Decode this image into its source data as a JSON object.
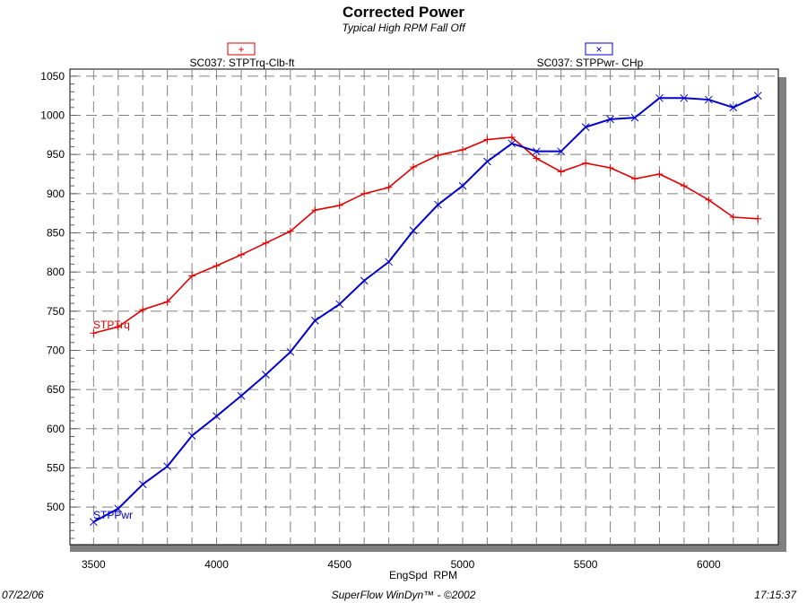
{
  "chart_data": {
    "type": "line",
    "title": "Corrected Power",
    "subtitle": "Typical High RPM Fall Off",
    "xlabel": "EngSpd  RPM",
    "ylabel": "",
    "xlim": [
      3404,
      6283
    ],
    "ylim": [
      452,
      1059
    ],
    "x_ticks": [
      3500,
      4000,
      4500,
      5000,
      5500,
      6000
    ],
    "y_ticks": [
      500,
      550,
      600,
      650,
      700,
      750,
      800,
      850,
      900,
      950,
      1000,
      1050
    ],
    "grid": true,
    "legend_placement": "top",
    "x": [
      3500,
      3600,
      3700,
      3800,
      3900,
      4000,
      4100,
      4200,
      4300,
      4400,
      4500,
      4600,
      4700,
      4800,
      4900,
      5000,
      5100,
      5200,
      5300,
      5400,
      5500,
      5600,
      5700,
      5800,
      5900,
      6000,
      6100,
      6200
    ],
    "series": [
      {
        "name": "SC037: STPTrq-Clb-ft",
        "label": "STPTrq",
        "marker": "+",
        "color": "#e00000",
        "values": [
          722,
          730,
          752,
          762,
          795,
          808,
          822,
          837,
          852,
          879,
          885,
          900,
          908,
          934,
          949,
          956,
          969,
          972,
          945,
          928,
          939,
          933,
          919,
          925,
          910,
          892,
          870,
          868
        ]
      },
      {
        "name": "SC037: STPPwr- CHp",
        "label": "STPPwr",
        "marker": "x",
        "color": "#0000cc",
        "values": [
          481,
          498,
          529,
          552,
          591,
          616,
          642,
          669,
          698,
          738,
          759,
          789,
          813,
          853,
          886,
          910,
          941,
          964,
          954,
          954,
          985,
          995,
          997,
          1022,
          1022,
          1020,
          1010,
          1025
        ]
      }
    ]
  },
  "footer": {
    "date": "07/22/06",
    "software": "SuperFlow WinDyn™ - ©2002",
    "time": "17:15:37"
  }
}
